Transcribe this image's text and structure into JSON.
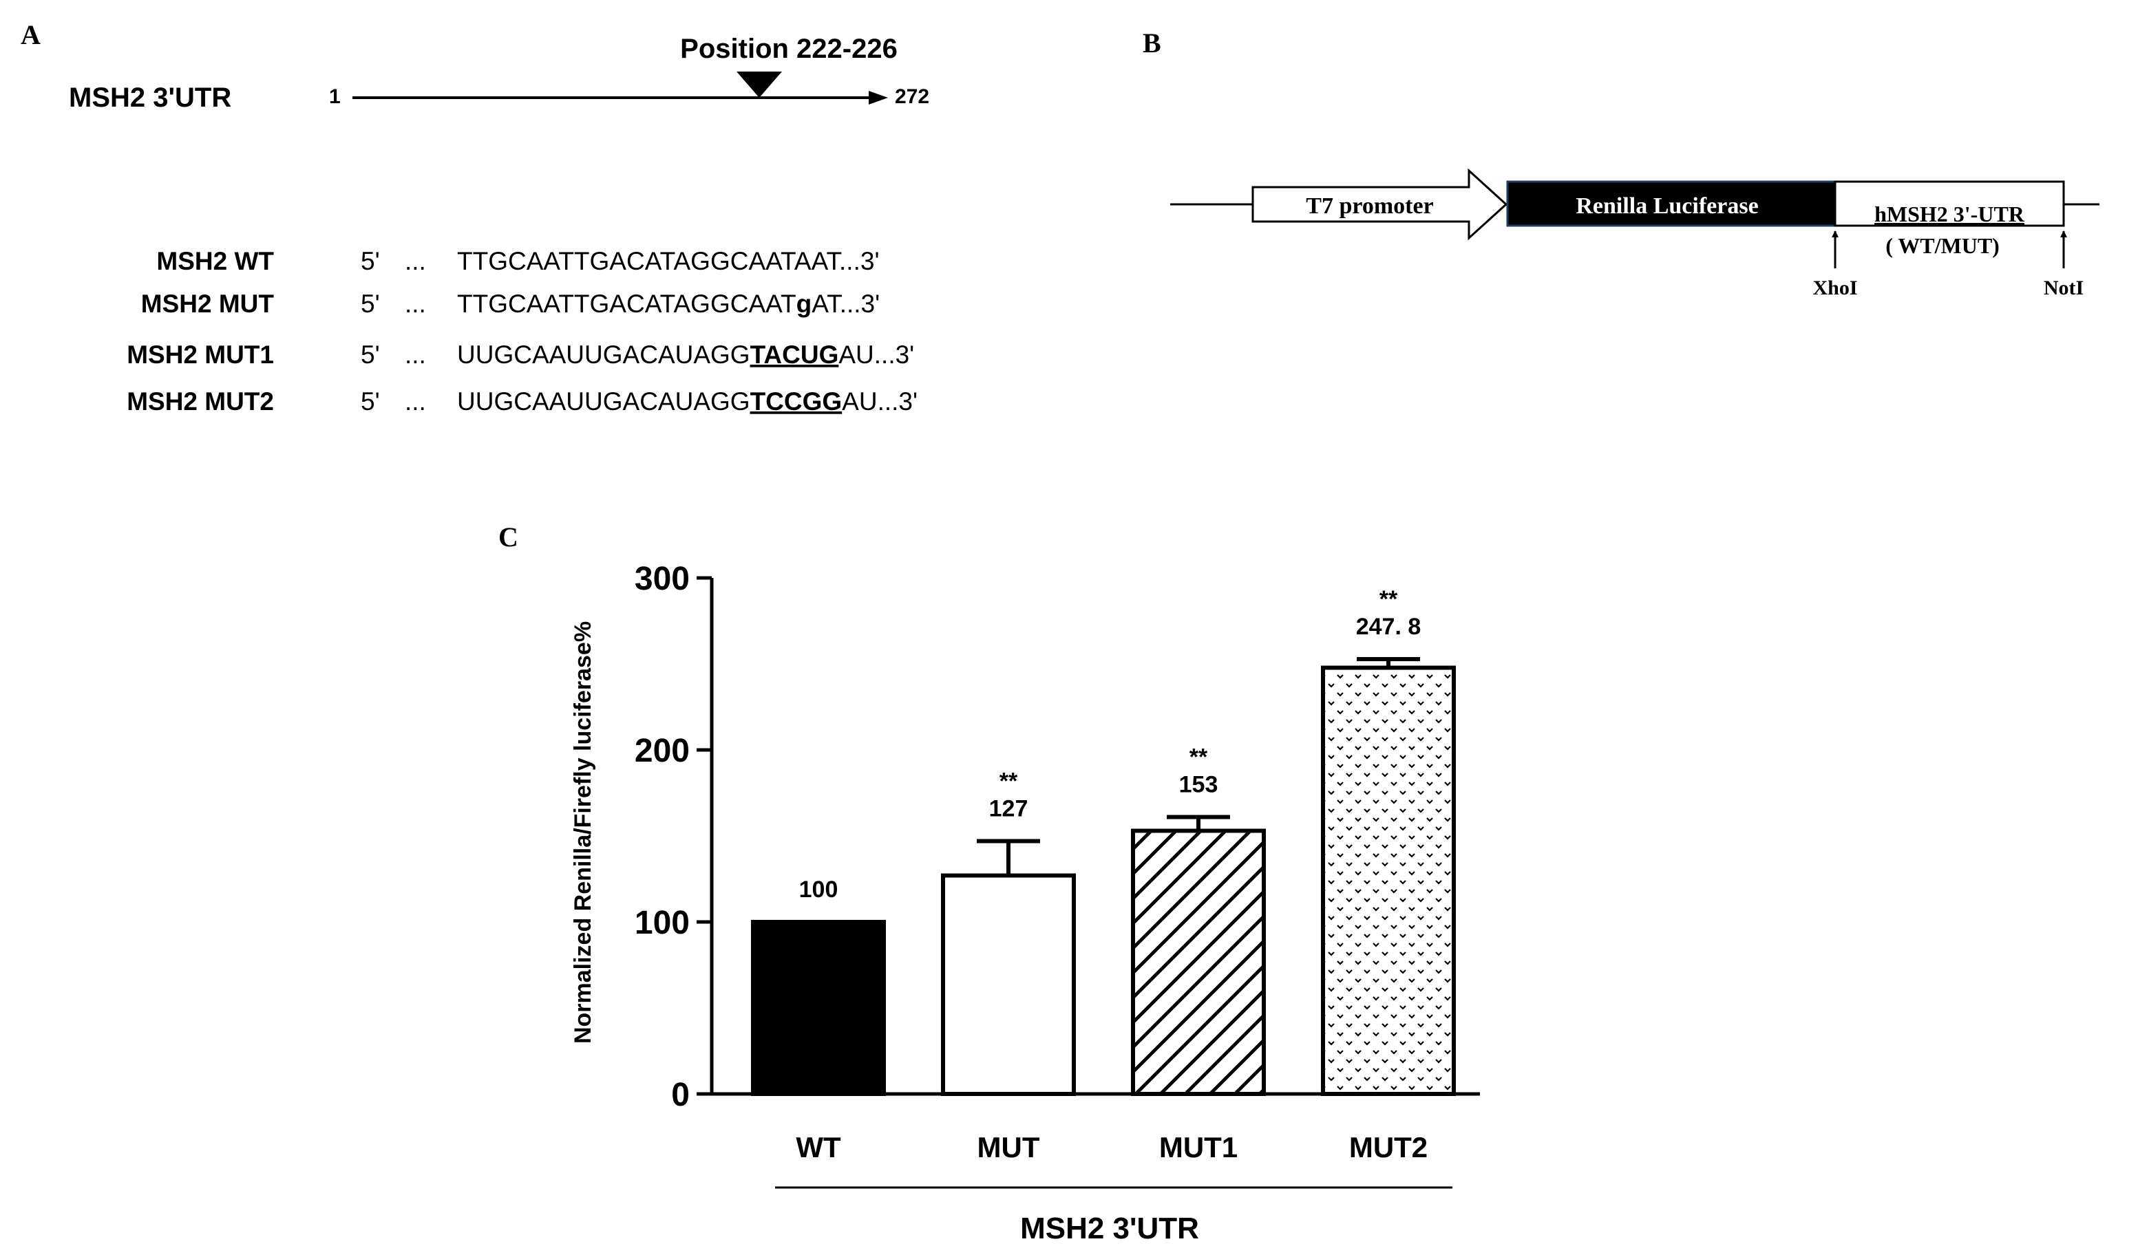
{
  "panel_a": {
    "label": "A",
    "gene_label": "MSH2  3'UTR",
    "start": "1",
    "end": "272",
    "position_label": "Position 222-226",
    "sequences": [
      {
        "name": "MSH2 WT",
        "prefix": "5'",
        "dots": "...",
        "plain": "TTGCAATTGACATAGGCAATAAT",
        "marked": "",
        "suffix": "...3'"
      },
      {
        "name": "MSH2 MUT",
        "prefix": "5'",
        "dots": "...",
        "plain": "TTGCAATTGACATAGGCAAT",
        "marked": "g",
        "suffix": "AT...3'"
      },
      {
        "name": "MSH2 MUT1",
        "prefix": "5'",
        "dots": "...",
        "plain": "UUGCAAUUGACAUAGG",
        "marked": "TACUG",
        "suffix": "AU...3'"
      },
      {
        "name": "MSH2 MUT2",
        "prefix": "5'",
        "dots": "...",
        "plain": "UUGCAAUUGACAUAGG",
        "marked": "TCCGG",
        "suffix": "AU...3'"
      }
    ]
  },
  "panel_b": {
    "label": "B",
    "promoter": "T7 promoter",
    "reporter": "Renilla Luciferase",
    "utr_line1": "hMSH2 3'-UTR",
    "utr_line2": "( WT/MUT)",
    "site_left": "XhoI",
    "site_right": "NotI",
    "colors": {
      "reporter_fill": "#000000"
    }
  },
  "panel_c": {
    "label": "C"
  },
  "chart_data": {
    "type": "bar",
    "categories": [
      "WT",
      "MUT",
      "MUT1",
      "MUT2"
    ],
    "values": [
      100,
      127,
      153,
      247.8
    ],
    "value_labels": [
      "100",
      "127",
      "153",
      "247. 8"
    ],
    "errors": [
      0,
      20,
      8,
      5
    ],
    "significance": [
      "",
      "**",
      "**",
      "**"
    ],
    "fills": [
      "solid-black",
      "white",
      "diagonal-hatch",
      "dotted"
    ],
    "ylim": [
      0,
      300
    ],
    "yticks": [
      0,
      100,
      200,
      300
    ],
    "ylabel": "Normalized Renilla/Firefly luciferase%",
    "group_label": "MSH2  3'UTR"
  }
}
